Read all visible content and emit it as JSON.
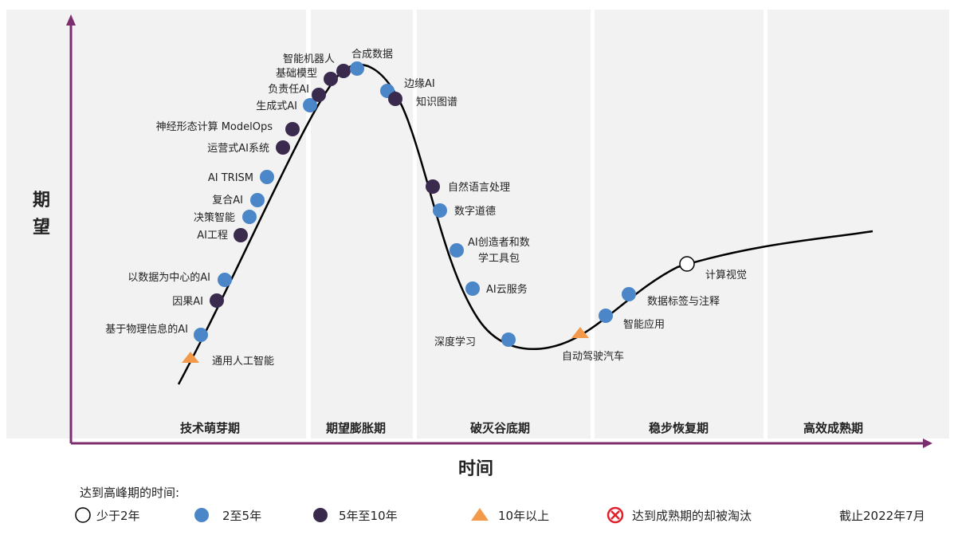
{
  "colors": {
    "axis": "#7B2D6E",
    "short": "#ffffff",
    "mid": "#4A86C8",
    "long": "#3A2A4E",
    "over10": "#F39A4A",
    "obsolete": "#E0202A",
    "band": "#F2F2F2",
    "curve": "#000000"
  },
  "axis": {
    "y_title_1": "期",
    "y_title_2": "望",
    "x_title": "时间"
  },
  "phases": [
    "技术萌芽期",
    "期望膨胀期",
    "破灭谷底期",
    "稳步恢复期",
    "高效成熟期"
  ],
  "technologies": [
    {
      "label": "通用人工智能",
      "category": "over10"
    },
    {
      "label": "基于物理信息的AI",
      "category": "mid"
    },
    {
      "label": "因果AI",
      "category": "long"
    },
    {
      "label": "以数据为中心的AI",
      "category": "mid"
    },
    {
      "label": "AI工程",
      "category": "long"
    },
    {
      "label": "决策智能",
      "category": "mid"
    },
    {
      "label": "复合AI",
      "category": "mid"
    },
    {
      "label": "AI TRISM",
      "category": "mid"
    },
    {
      "label": "运营式AI系统",
      "category": "long"
    },
    {
      "label": "神经形态计算 ModelOps",
      "category": "long"
    },
    {
      "label": "生成式AI",
      "category": "mid"
    },
    {
      "label": "负责任AI",
      "category": "long"
    },
    {
      "label": "基础模型",
      "category": "long"
    },
    {
      "label": "智能机器人",
      "category": "long"
    },
    {
      "label": "合成数据",
      "category": "mid"
    },
    {
      "label": "边缘AI",
      "category": "mid"
    },
    {
      "label": "知识图谱",
      "category": "long"
    },
    {
      "label": "自然语言处理",
      "category": "long"
    },
    {
      "label": "数字道德",
      "category": "mid"
    },
    {
      "label": "AI创造者和数",
      "label2": "学工具包",
      "category": "mid"
    },
    {
      "label": "AI云服务",
      "category": "mid"
    },
    {
      "label": "深度学习",
      "category": "mid"
    },
    {
      "label": "自动驾驶汽车",
      "category": "over10"
    },
    {
      "label": "智能应用",
      "category": "mid"
    },
    {
      "label": "数据标签与注释",
      "category": "mid"
    },
    {
      "label": "计算视觉",
      "category": "short"
    }
  ],
  "legend": {
    "title": "达到高峰期的时间:",
    "short": "少于2年",
    "mid": "2至5年",
    "long": "5年至10年",
    "over10": "10年以上",
    "obsolete": "达到成熟期的却被淘汰",
    "asof": "截止2022年7月"
  }
}
